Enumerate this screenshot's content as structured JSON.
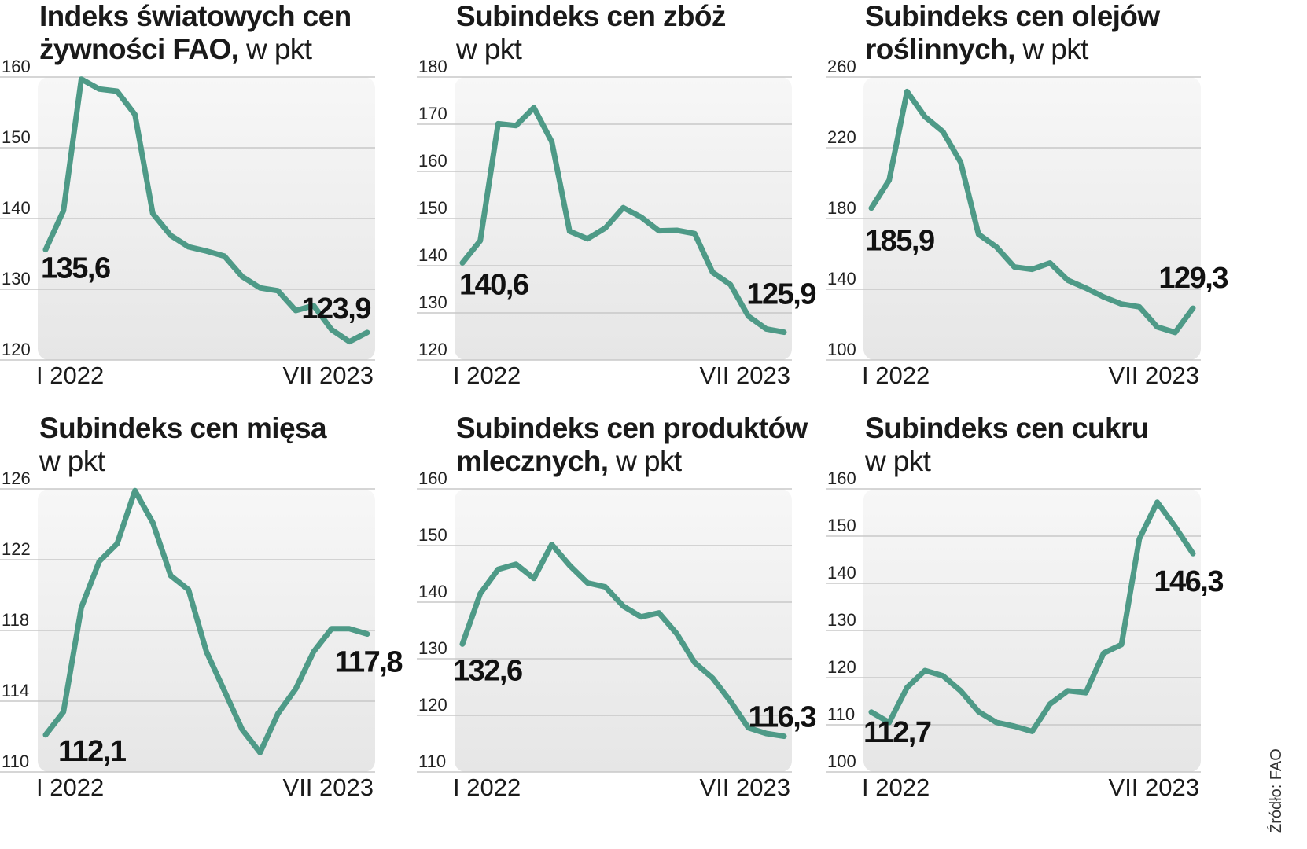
{
  "source": "Źródło: FAO",
  "chart_data": [
    {
      "type": "line",
      "title_bold": "Indeks światowych cen żywności FAO,",
      "title_light": "w pkt",
      "x_start_label": "I 2022",
      "x_end_label": "VII 2023",
      "ylim": [
        120,
        160
      ],
      "yticks": [
        120,
        130,
        140,
        150,
        160
      ],
      "color": "#4e9a87",
      "values": [
        135.6,
        141.1,
        159.7,
        158.3,
        158.0,
        154.7,
        140.7,
        137.6,
        136.0,
        135.4,
        134.7,
        131.8,
        130.2,
        129.8,
        127.0,
        127.7,
        124.3,
        122.6,
        123.9
      ],
      "start_label": "135,6",
      "end_label": "123,9"
    },
    {
      "type": "line",
      "title_bold": "Subindeks cen zbóż",
      "title_light": "w pkt",
      "x_start_label": "I 2022",
      "x_end_label": "VII 2023",
      "ylim": [
        120,
        180
      ],
      "yticks": [
        120,
        130,
        140,
        150,
        160,
        170,
        180
      ],
      "color": "#4e9a87",
      "values": [
        140.6,
        145.3,
        170.1,
        169.7,
        173.5,
        166.3,
        147.3,
        145.7,
        148.0,
        152.3,
        150.3,
        147.4,
        147.5,
        146.8,
        138.6,
        136.0,
        129.3,
        126.6,
        125.9
      ],
      "start_label": "140,6",
      "end_label": "125,9"
    },
    {
      "type": "line",
      "title_bold": "Subindeks cen olejów roślinnych,",
      "title_light": "w pkt",
      "x_start_label": "I 2022",
      "x_end_label": "VII 2023",
      "ylim": [
        100,
        260
      ],
      "yticks": [
        100,
        140,
        180,
        220,
        260
      ],
      "color": "#4e9a87",
      "values": [
        185.9,
        201.7,
        251.8,
        237.5,
        229.2,
        211.8,
        171.1,
        163.9,
        152.6,
        151.3,
        154.9,
        145.1,
        140.7,
        135.7,
        131.7,
        130.1,
        118.7,
        115.6,
        129.3
      ],
      "start_label": "185,9",
      "end_label": "129,3"
    },
    {
      "type": "line",
      "title_bold": "Subindeks cen mięsa",
      "title_light": "w pkt",
      "x_start_label": "I 2022",
      "x_end_label": "VII 2023",
      "ylim": [
        110,
        126
      ],
      "yticks": [
        110,
        114,
        118,
        122,
        126
      ],
      "color": "#4e9a87",
      "values": [
        112.1,
        113.4,
        119.3,
        121.9,
        122.9,
        125.9,
        124.1,
        121.1,
        120.3,
        116.8,
        114.6,
        112.4,
        111.1,
        113.3,
        114.7,
        116.8,
        118.1,
        118.1,
        117.8
      ],
      "start_label": "112,1",
      "end_label": "117,8"
    },
    {
      "type": "line",
      "title_bold": "Subindeks cen produktów mlecznych,",
      "title_light": "w pkt",
      "x_start_label": "I 2022",
      "x_end_label": "VII 2023",
      "ylim": [
        110,
        160
      ],
      "yticks": [
        110,
        120,
        130,
        140,
        150,
        160
      ],
      "color": "#4e9a87",
      "values": [
        132.6,
        141.5,
        145.8,
        146.7,
        144.2,
        150.2,
        146.5,
        143.4,
        142.7,
        139.3,
        137.4,
        138.1,
        134.4,
        129.3,
        126.6,
        122.5,
        117.8,
        116.8,
        116.3
      ],
      "start_label": "132,6",
      "end_label": "116,3"
    },
    {
      "type": "line",
      "title_bold": "Subindeks cen cukru",
      "title_light": "w pkt",
      "x_start_label": "I 2022",
      "x_end_label": "VII 2023",
      "ylim": [
        100,
        160
      ],
      "yticks": [
        100,
        110,
        120,
        130,
        140,
        150,
        160
      ],
      "color": "#4e9a87",
      "values": [
        112.7,
        110.5,
        117.9,
        121.5,
        120.4,
        117.2,
        112.8,
        110.5,
        109.7,
        108.6,
        114.4,
        117.2,
        116.8,
        125.2,
        127.0,
        149.4,
        157.2,
        152.0,
        146.3
      ],
      "start_label": "112,7",
      "end_label": "146,3"
    }
  ]
}
